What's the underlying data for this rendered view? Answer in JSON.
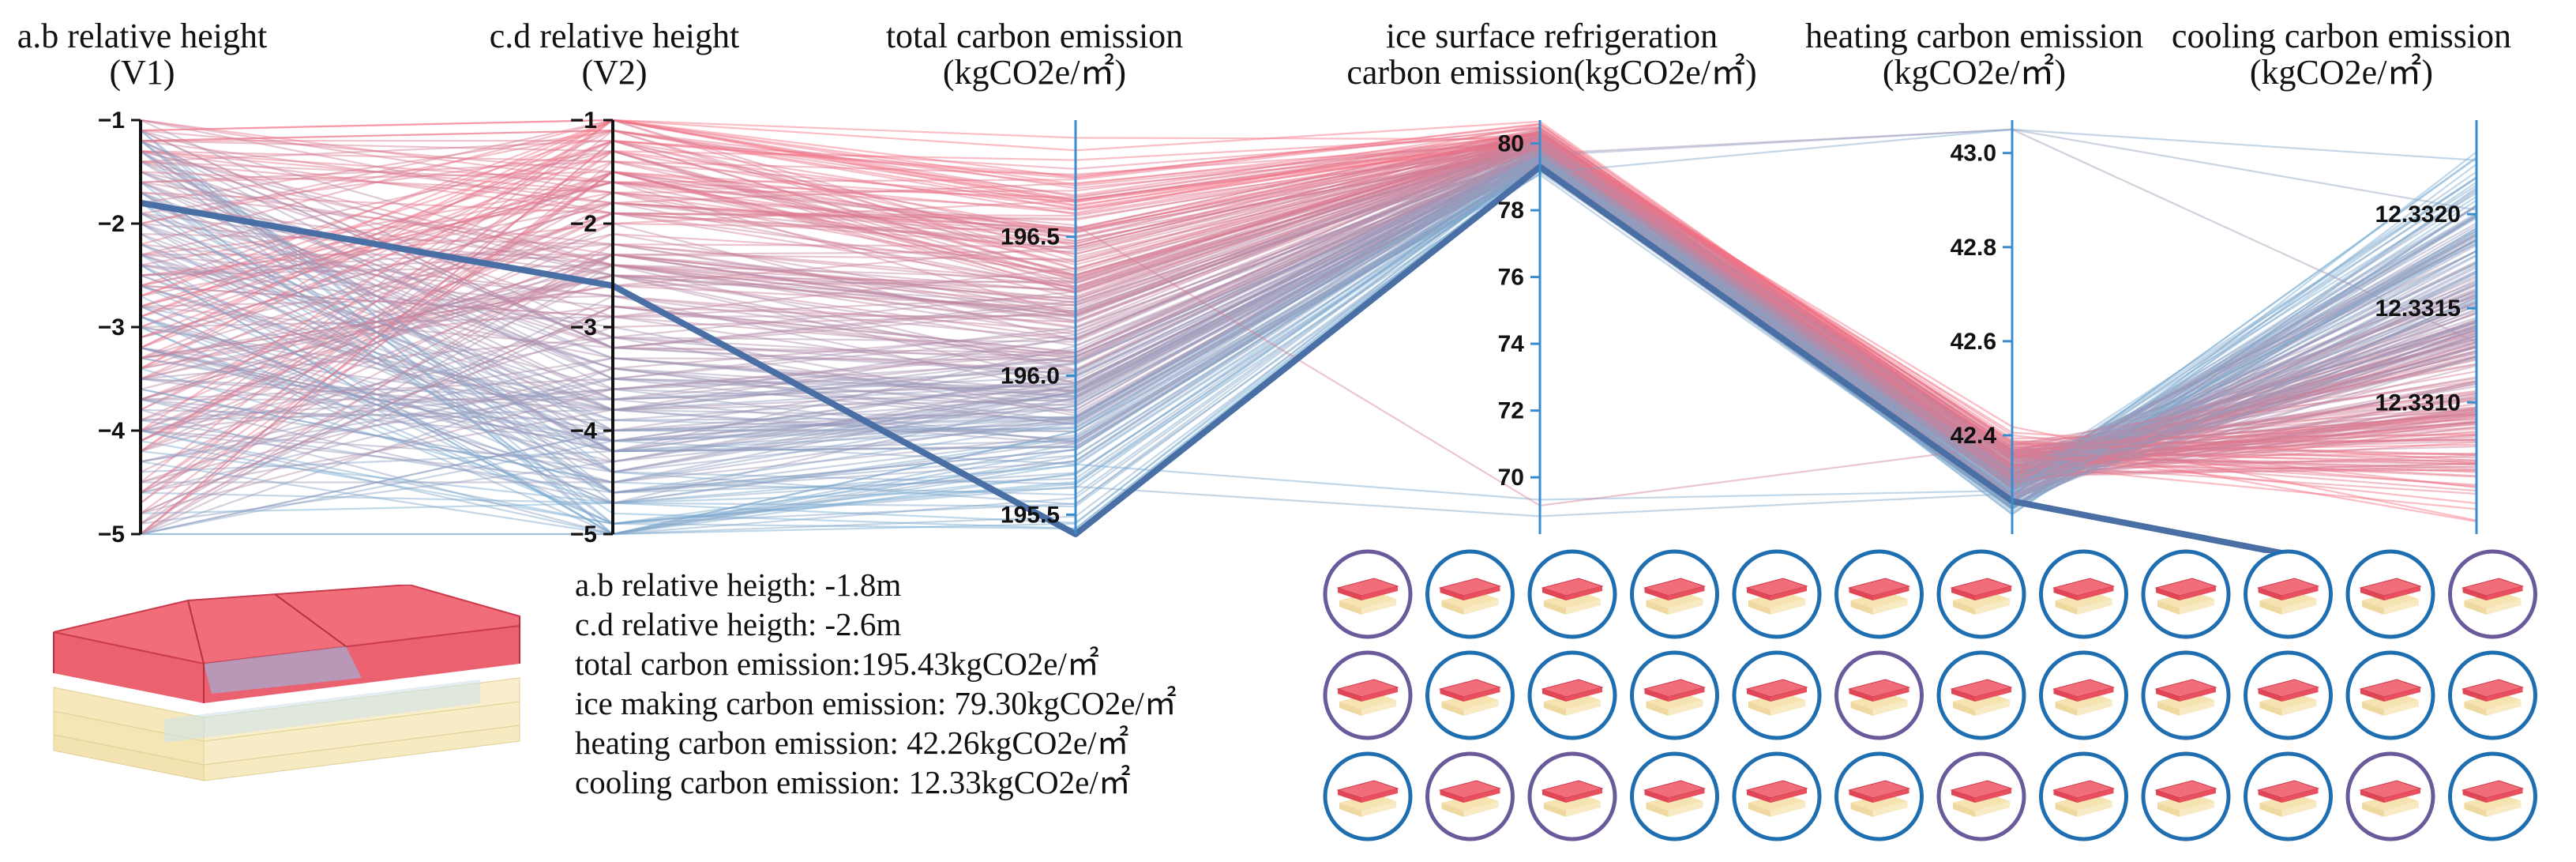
{
  "chart_data": {
    "type": "parallel_coordinates",
    "title": "",
    "axes": [
      {
        "id": "ab",
        "title_lines": [
          "a.b relative height",
          "(V1)"
        ],
        "range": [
          -5,
          -1
        ],
        "ticks": [
          -1,
          -2,
          -3,
          -4,
          -5
        ],
        "tick_labels": [
          "−1",
          "−2",
          "−3",
          "−4",
          "−5"
        ],
        "tick_side": "left"
      },
      {
        "id": "cd",
        "title_lines": [
          "c.d relative height",
          "(V2)"
        ],
        "range": [
          -5,
          -1
        ],
        "ticks": [
          -1,
          -2,
          -3,
          -4,
          -5
        ],
        "tick_labels": [
          "−1",
          "−2",
          "−3",
          "−4",
          "−5"
        ],
        "tick_side": "left"
      },
      {
        "id": "total",
        "title_lines": [
          "total carbon emission",
          "(kgCO2e/㎡)"
        ],
        "range": [
          195.43,
          196.92
        ],
        "ticks": [
          196.5,
          196.0,
          195.5
        ],
        "tick_labels": [
          "196.5",
          "196.0",
          "195.5"
        ],
        "tick_side": "left"
      },
      {
        "id": "ice",
        "title_lines": [
          "ice surface refrigeration",
          "carbon emission(kgCO2e/㎡)"
        ],
        "range": [
          68.3,
          80.7
        ],
        "ticks": [
          80,
          78,
          76,
          74,
          72,
          70
        ],
        "tick_labels": [
          "80",
          "78",
          "76",
          "74",
          "72",
          "70"
        ],
        "tick_side": "left"
      },
      {
        "id": "heat",
        "title_lines": [
          "heating carbon emission",
          "(kgCO2e/㎡)"
        ],
        "range": [
          42.19,
          43.07
        ],
        "ticks": [
          43.0,
          42.8,
          42.6,
          42.4
        ],
        "tick_labels": [
          "43.0",
          "42.8",
          "42.6",
          "42.4"
        ],
        "tick_side": "left"
      },
      {
        "id": "cool",
        "title_lines": [
          "cooling carbon emission",
          "(kgCO2e/㎡)"
        ],
        "range": [
          12.3303,
          12.3325
        ],
        "ticks": [
          12.332,
          12.3315,
          12.331
        ],
        "tick_labels": [
          "12.3320",
          "12.3315",
          "12.3310"
        ],
        "tick_side": "left"
      }
    ],
    "highlighted_solution": {
      "ab": -1.8,
      "cd": -2.6,
      "total": 195.43,
      "ice": 79.3,
      "heat": 42.26,
      "cool": 12.33
    },
    "color_scale": {
      "low": "#6baed6",
      "high": "#fb6a7c",
      "highlight": "#4a6fa5"
    },
    "n_solutions_shown": 260
  },
  "summary": {
    "lines": [
      "a.b relative heigth: -1.8m",
      "c.d relative heigth: -2.6m",
      "total carbon emission:195.43kgCO2e/㎡",
      "ice making carbon emission: 79.30kgCO2e/㎡",
      "heating carbon emission: 42.26kgCO2e/㎡",
      "cooling carbon emission: 12.33kgCO2e/㎡"
    ]
  },
  "thumbnails": {
    "rows": 3,
    "cols": 12,
    "ring_colors": [
      [
        "purple",
        "blue",
        "blue",
        "blue",
        "blue",
        "blue",
        "blue",
        "blue",
        "blue",
        "blue",
        "blue",
        "purple"
      ],
      [
        "purple",
        "blue",
        "blue",
        "blue",
        "blue",
        "purple",
        "blue",
        "blue",
        "blue",
        "blue",
        "blue",
        "blue"
      ],
      [
        "blue",
        "purple",
        "purple",
        "blue",
        "blue",
        "blue",
        "purple",
        "blue",
        "blue",
        "blue",
        "purple",
        "blue"
      ]
    ],
    "palette": {
      "blue": "#1f6fb0",
      "purple": "#6a5a9c"
    }
  }
}
